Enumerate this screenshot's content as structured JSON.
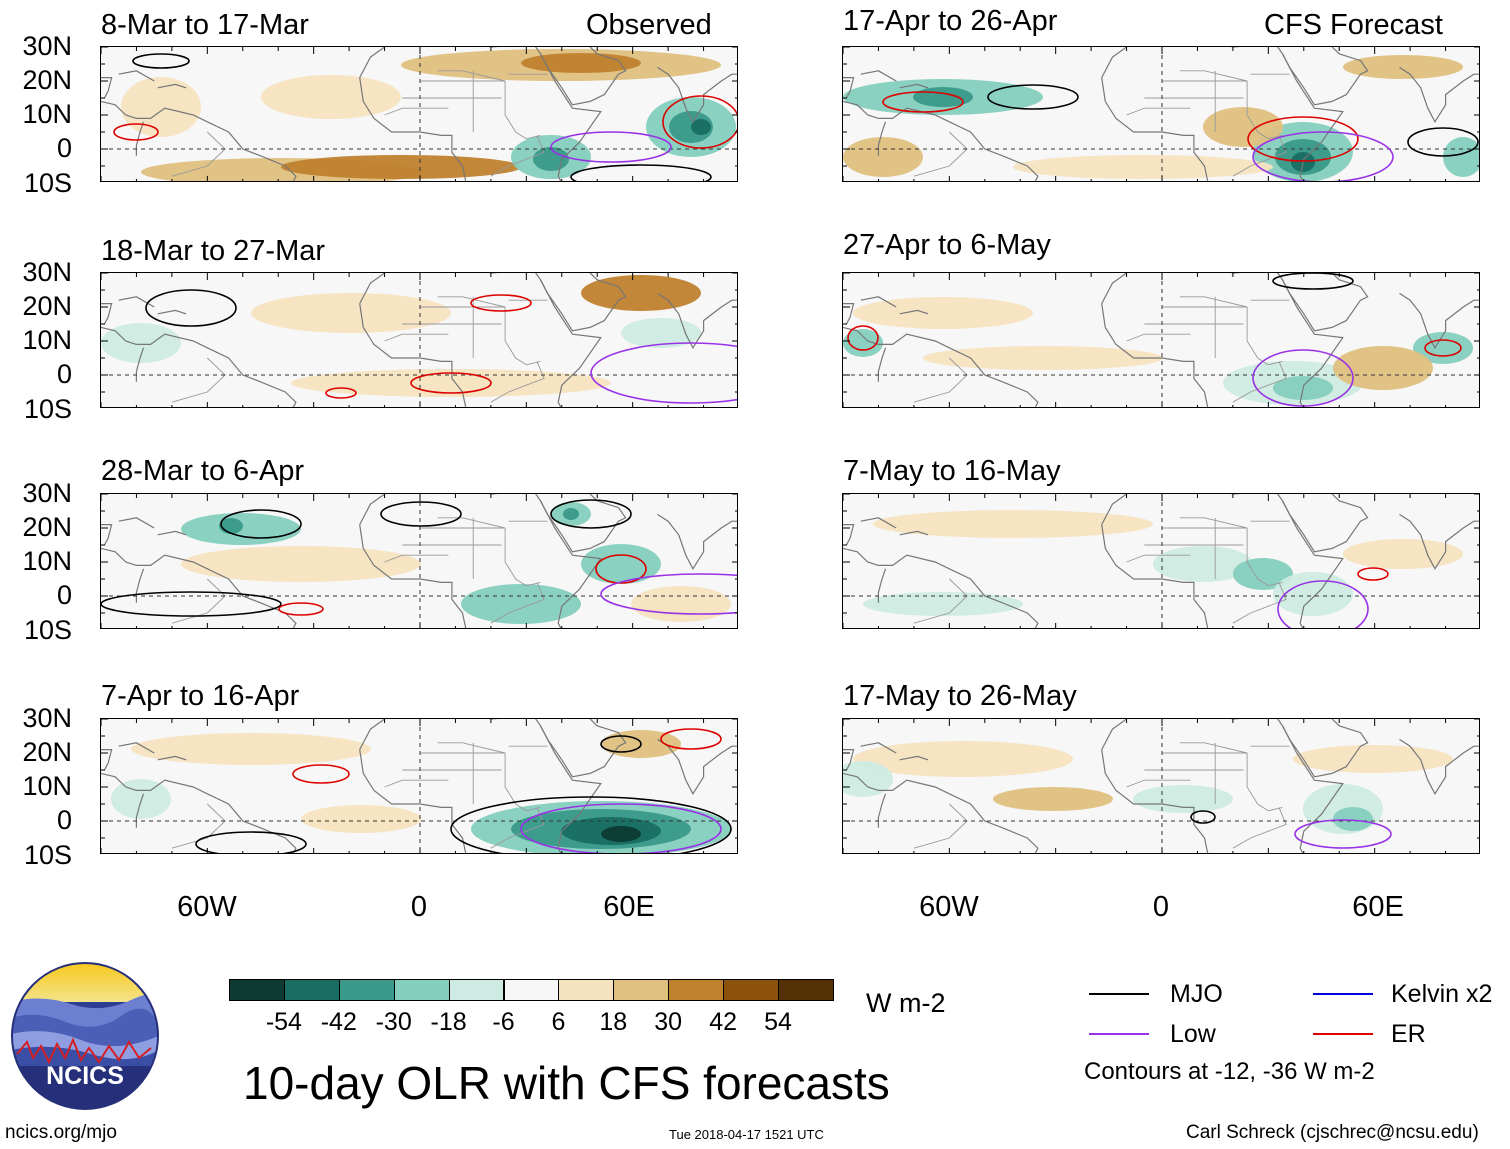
{
  "header": {
    "observed_label": "Observed",
    "forecast_label": "CFS Forecast"
  },
  "panels": [
    {
      "title": "8-Mar to 17-Mar"
    },
    {
      "title": "18-Mar to 27-Mar"
    },
    {
      "title": "28-Mar to 6-Apr"
    },
    {
      "title": "7-Apr to 16-Apr"
    },
    {
      "title": "17-Apr to 26-Apr"
    },
    {
      "title": "27-Apr to 6-May"
    },
    {
      "title": "7-May to 16-May"
    },
    {
      "title": "17-May to 26-May"
    }
  ],
  "axes": {
    "lat_ticks": [
      "30N",
      "20N",
      "10N",
      "0",
      "10S"
    ],
    "lon_ticks": [
      "60W",
      "0",
      "60E"
    ]
  },
  "colorbar": {
    "labels": [
      "-54",
      "-42",
      "-30",
      "-18",
      "-6",
      "6",
      "18",
      "30",
      "42",
      "54"
    ],
    "colors": [
      "#0d3b33",
      "#186e62",
      "#3a998a",
      "#85cfbe",
      "#cdebe2",
      "#f7f7f7",
      "#f5e3c0",
      "#dfc07f",
      "#bf812d",
      "#8c510a",
      "#543005"
    ],
    "units": "W m-2"
  },
  "legend": {
    "items": [
      {
        "label": "MJO",
        "color": "#000000"
      },
      {
        "label": "Kelvin x2",
        "color": "#0000dd"
      },
      {
        "label": "Low",
        "color": "#9932e6"
      },
      {
        "label": "ER",
        "color": "#dd0000"
      }
    ],
    "note": "Contours at -12, -36 W m-2"
  },
  "logo": {
    "text": "NCICS"
  },
  "footer": {
    "title": "10-day OLR with CFS forecasts",
    "url": "ncics.org/mjo",
    "timestamp": "Tue 2018-04-17 1521 UTC",
    "credit": "Carl Schreck (cjschrec@ncsu.edu)"
  },
  "chart_data": {
    "type": "heatmap",
    "title": "10-day OLR with CFS forecasts",
    "variable": "OLR anomaly",
    "units": "W m-2",
    "lat_range": [
      -10,
      30
    ],
    "lon_range": [
      -90,
      90
    ],
    "levels": [
      -54,
      -42,
      -30,
      -18,
      -6,
      6,
      18,
      30,
      42,
      54
    ],
    "contour_levels": [
      -12,
      -36
    ],
    "observed_periods": [
      "8-Mar to 17-Mar",
      "18-Mar to 27-Mar",
      "28-Mar to 6-Apr",
      "7-Apr to 16-Apr"
    ],
    "forecast_periods": [
      "17-Apr to 26-Apr",
      "27-Apr to 6-May",
      "7-May to 16-May",
      "17-May to 26-May"
    ]
  }
}
